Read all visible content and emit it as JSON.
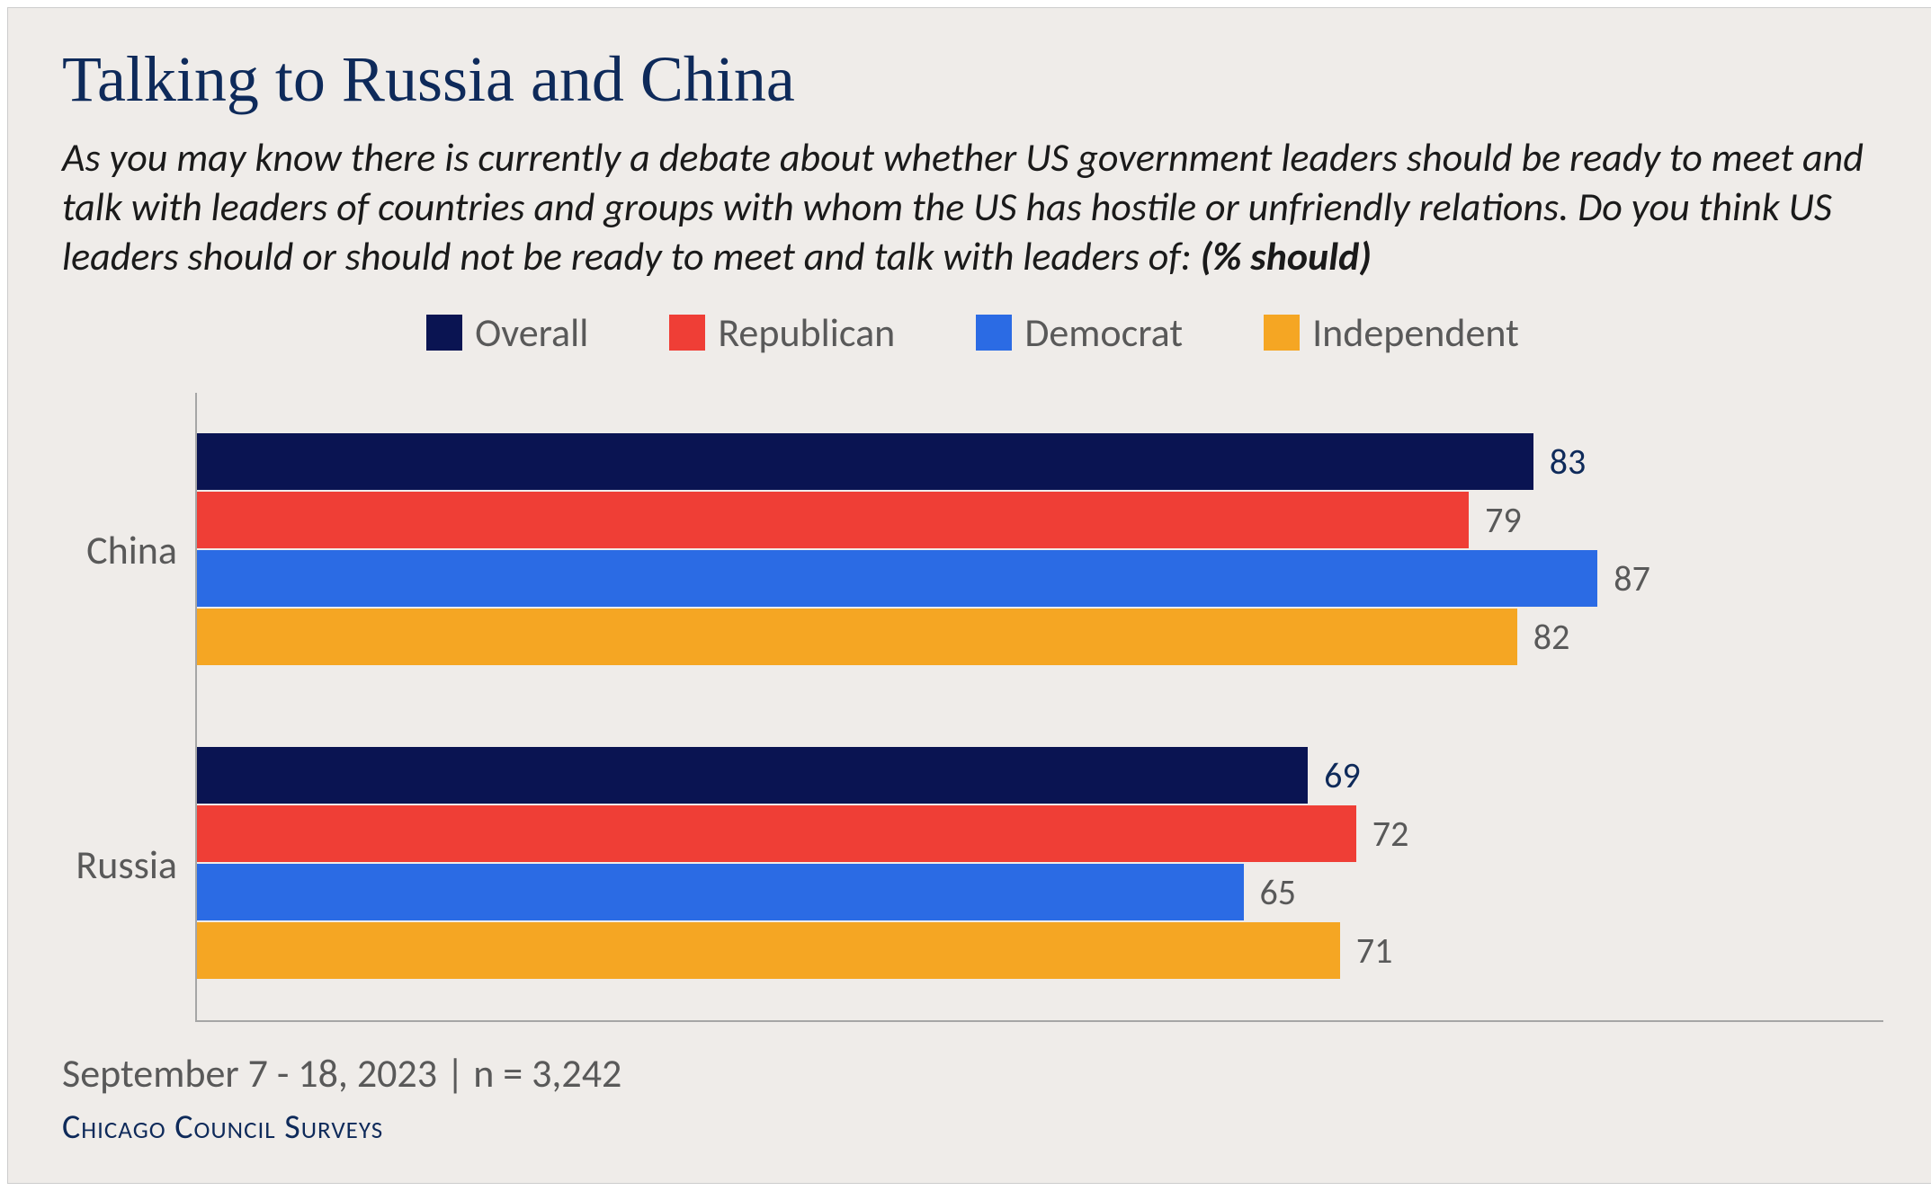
{
  "chart": {
    "type": "grouped-horizontal-bar",
    "background_color": "#efece9",
    "title": "Talking to Russia and China",
    "title_color": "#0e2a5a",
    "title_fontsize": 72,
    "subtitle_prefix": "As you may know there is currently a debate about whether US government leaders should be ready to meet and talk with leaders of countries and groups with whom the US has hostile or unfriendly relations.  Do you think US leaders should or should not be ready to meet and talk with leaders of: ",
    "subtitle_bold": "(% should)",
    "subtitle_color": "#1a1a1a",
    "subtitle_fontsize": 44,
    "legend_fontsize": 44,
    "legend_text_color": "#595959",
    "axis_label_color": "#595959",
    "axis_line_color": "#a6a6a6",
    "xlim_max": 100,
    "series": [
      {
        "name": "Overall",
        "color": "#0a1452",
        "label_color": "#0e2a5a"
      },
      {
        "name": "Republican",
        "color": "#ef3e36",
        "label_color": "#595959"
      },
      {
        "name": "Democrat",
        "color": "#2b6be4",
        "label_color": "#595959"
      },
      {
        "name": "Independent",
        "color": "#f5a623",
        "label_color": "#595959"
      }
    ],
    "categories": [
      {
        "label": "China",
        "values": [
          83,
          79,
          87,
          82
        ]
      },
      {
        "label": "Russia",
        "values": [
          69,
          72,
          65,
          71
        ]
      }
    ],
    "footer_date": "September 7 - 18, 2023 | n = 3,242",
    "footer_date_color": "#595959",
    "footer_source": "Chicago Council Surveys",
    "footer_source_color": "#0e2a5a"
  }
}
